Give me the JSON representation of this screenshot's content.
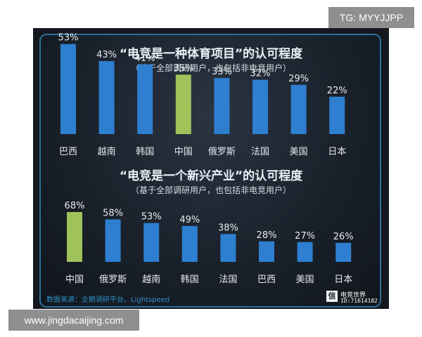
{
  "watermark_top": "TG: MYYJJPP",
  "watermark_bottom": "www.jingdacaijing.com",
  "source_text": "数据来源：企鹅调研平台、Lightspeed",
  "logo": {
    "icon_char": "信",
    "name": "电竞世界",
    "id": "ID:71614102"
  },
  "colors": {
    "bar": "#2e7fd0",
    "highlight": "#9fc25a",
    "background": "#1a212b",
    "frame": "#2c6f9b"
  },
  "chart_data": [
    {
      "type": "bar",
      "title": "“电竞是一种体育项目”的认可程度",
      "subtitle": "（基于全部调研用户，也包括非电竞用户）",
      "categories": [
        "巴西",
        "越南",
        "韩国",
        "中国",
        "俄罗斯",
        "法国",
        "美国",
        "日本"
      ],
      "values": [
        53,
        43,
        41,
        35,
        33,
        32,
        29,
        22
      ],
      "value_labels": [
        "53%",
        "43%",
        "41%",
        "35%",
        "33%",
        "32%",
        "29%",
        "22%"
      ],
      "highlight": "中国",
      "ylim": [
        0,
        60
      ]
    },
    {
      "type": "bar",
      "title": "“电竞是一个新兴产业”的认可程度",
      "subtitle": "（基于全部调研用户，也包括非电竞用户）",
      "categories": [
        "中国",
        "俄罗斯",
        "越南",
        "韩国",
        "法国",
        "巴西",
        "美国",
        "日本"
      ],
      "values": [
        68,
        58,
        53,
        49,
        38,
        28,
        27,
        26
      ],
      "value_labels": [
        "68%",
        "58%",
        "53%",
        "49%",
        "38%",
        "28%",
        "27%",
        "26%"
      ],
      "highlight": "中国",
      "ylim": [
        0,
        75
      ]
    }
  ]
}
